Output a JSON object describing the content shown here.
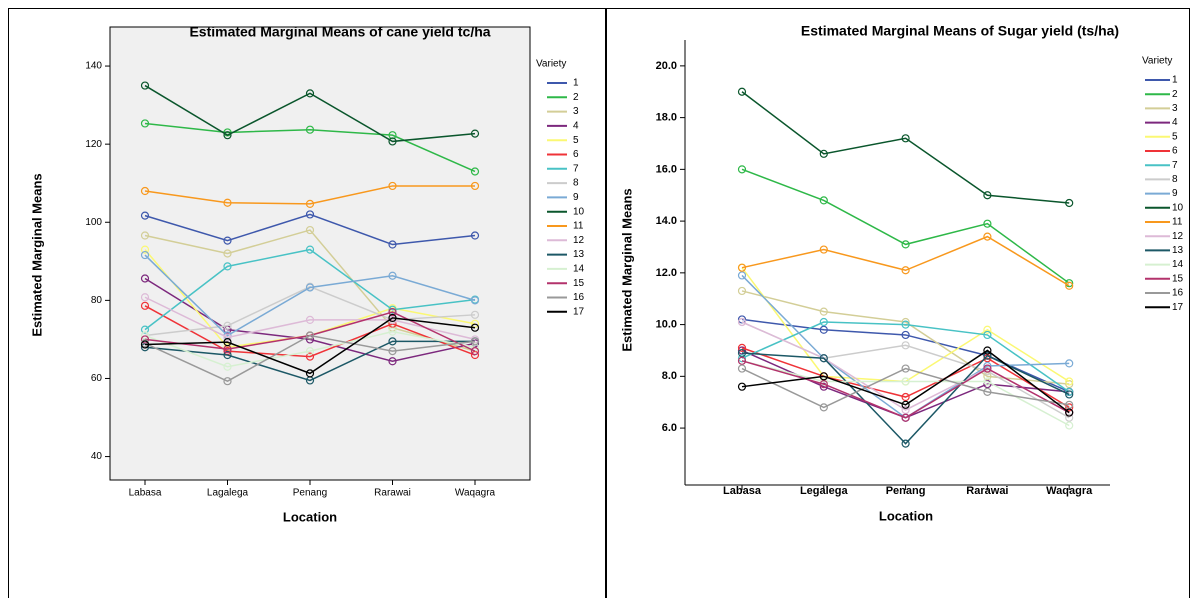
{
  "chart_data": [
    {
      "type": "line",
      "title": "Estimated Marginal Means of cane yield tc/ha",
      "x_label": "Location",
      "y_label": "Estimated Marginal Means",
      "legend_title": "Variety",
      "categories": [
        "Labasa",
        "Lagalega",
        "Penang",
        "Rarawai",
        "Waqagra"
      ],
      "ylim": [
        34,
        150
      ],
      "yticks": [
        40,
        60,
        80,
        100,
        120,
        140
      ],
      "series": [
        {
          "name": "1",
          "color": "#3e58ac",
          "values": [
            101.7,
            95.3,
            102,
            94.3,
            96.6
          ]
        },
        {
          "name": "2",
          "color": "#2eb848",
          "values": [
            125.3,
            123,
            123.7,
            122.3,
            113
          ]
        },
        {
          "name": "3",
          "color": "#d3ce97",
          "values": [
            96.6,
            92,
            98,
            73,
            67
          ]
        },
        {
          "name": "4",
          "color": "#7c287d",
          "values": [
            85.6,
            72.5,
            70,
            64.4,
            69
          ]
        },
        {
          "name": "5",
          "color": "#fbf873",
          "values": [
            93,
            68,
            71,
            78,
            74
          ]
        },
        {
          "name": "6",
          "color": "#ef3338",
          "values": [
            78.6,
            67,
            65.6,
            74,
            66
          ]
        },
        {
          "name": "7",
          "color": "#48c2c5",
          "values": [
            72.5,
            88.7,
            93,
            77.6,
            80.2
          ]
        },
        {
          "name": "8",
          "color": "#cccccc",
          "values": [
            71,
            73.5,
            83.5,
            75,
            76.3
          ]
        },
        {
          "name": "9",
          "color": "#7aaad5",
          "values": [
            91.6,
            71,
            83.3,
            86.3,
            80
          ]
        },
        {
          "name": "10",
          "color": "#0a562c",
          "values": [
            135,
            122.3,
            133,
            120.7,
            122.7
          ]
        },
        {
          "name": "11",
          "color": "#f8981d",
          "values": [
            108,
            105,
            104.7,
            109.3,
            109.3
          ]
        },
        {
          "name": "12",
          "color": "#ddbad7",
          "values": [
            80.8,
            70.5,
            75,
            75,
            70
          ]
        },
        {
          "name": "13",
          "color": "#1c5866",
          "values": [
            68,
            66,
            59.5,
            69.5,
            69.5
          ]
        },
        {
          "name": "14",
          "color": "#d6f0d1",
          "values": [
            71,
            63,
            67,
            72,
            68
          ]
        },
        {
          "name": "15",
          "color": "#b3326c",
          "values": [
            70,
            67.5,
            71,
            77,
            67
          ]
        },
        {
          "name": "16",
          "color": "#999999",
          "values": [
            69,
            59.3,
            71,
            67,
            69.5
          ]
        },
        {
          "name": "17",
          "color": "#000000",
          "values": [
            68.7,
            69.3,
            61.3,
            75.5,
            73
          ]
        }
      ]
    },
    {
      "type": "line",
      "title": "Estimated Marginal Means of Sugar yield (ts/ha)",
      "x_label": "Location",
      "y_label": "Estimated Marginal Means",
      "legend_title": "Variety",
      "categories": [
        "Labasa",
        "Legalega",
        "Penang",
        "Rarawai",
        "Waqagra"
      ],
      "ylim": [
        3.8,
        21.0
      ],
      "yticks": [
        {
          "value": 6,
          "label": "6.0"
        },
        {
          "value": 8,
          "label": "8.0"
        },
        {
          "value": 10,
          "label": "10.0"
        },
        {
          "value": 12,
          "label": "12.0"
        },
        {
          "value": 14,
          "label": "14.0"
        },
        {
          "value": 16,
          "label": "16.0"
        },
        {
          "value": 18,
          "label": "18.0"
        },
        {
          "value": 20,
          "label": "20.0"
        }
      ],
      "series": [
        {
          "name": "1",
          "color": "#3e58ac",
          "values": [
            10.2,
            9.8,
            9.6,
            8.8,
            7.4
          ]
        },
        {
          "name": "2",
          "color": "#2eb848",
          "values": [
            16.0,
            14.8,
            13.1,
            13.9,
            11.6
          ]
        },
        {
          "name": "3",
          "color": "#d3ce97",
          "values": [
            11.3,
            10.5,
            10.1,
            8.0,
            7.7
          ]
        },
        {
          "name": "4",
          "color": "#7c287d",
          "values": [
            9.0,
            7.6,
            6.4,
            7.7,
            7.4
          ]
        },
        {
          "name": "5",
          "color": "#fbf873",
          "values": [
            12.2,
            8.0,
            7.8,
            9.8,
            7.8
          ]
        },
        {
          "name": "6",
          "color": "#ef3338",
          "values": [
            9.1,
            8.0,
            7.2,
            8.7,
            6.8
          ]
        },
        {
          "name": "7",
          "color": "#48c2c5",
          "values": [
            8.7,
            10.1,
            10.0,
            9.6,
            7.4
          ]
        },
        {
          "name": "8",
          "color": "#cccccc",
          "values": [
            10.1,
            8.7,
            9.2,
            8.2,
            6.4
          ]
        },
        {
          "name": "9",
          "color": "#7aaad5",
          "values": [
            11.9,
            8.7,
            6.4,
            8.4,
            8.5
          ]
        },
        {
          "name": "10",
          "color": "#0a562c",
          "values": [
            19.0,
            16.6,
            17.2,
            15.0,
            14.7
          ]
        },
        {
          "name": "11",
          "color": "#f8981d",
          "values": [
            12.2,
            12.9,
            12.1,
            13.4,
            11.5
          ]
        },
        {
          "name": "12",
          "color": "#ddbad7",
          "values": [
            10.1,
            8.7,
            6.7,
            8.3,
            6.6
          ]
        },
        {
          "name": "13",
          "color": "#1c5866",
          "values": [
            8.9,
            8.7,
            5.4,
            8.8,
            7.3
          ]
        },
        {
          "name": "14",
          "color": "#d6f0d1",
          "values": [
            8.6,
            7.8,
            7.8,
            7.8,
            6.1
          ]
        },
        {
          "name": "15",
          "color": "#b3326c",
          "values": [
            8.6,
            7.7,
            6.4,
            8.3,
            6.6
          ]
        },
        {
          "name": "16",
          "color": "#999999",
          "values": [
            8.3,
            6.8,
            8.3,
            7.4,
            6.9
          ]
        },
        {
          "name": "17",
          "color": "#000000",
          "values": [
            7.6,
            8.0,
            6.9,
            9.0,
            6.6
          ]
        }
      ]
    }
  ]
}
